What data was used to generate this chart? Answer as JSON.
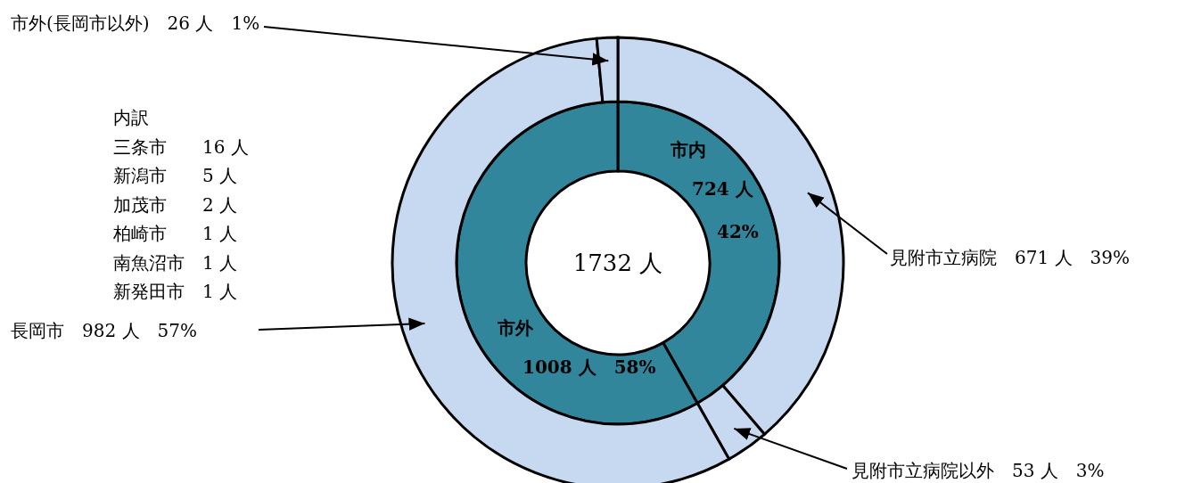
{
  "chart_data": [
    {
      "type": "donut",
      "categories": [
        "市内",
        "市外"
      ],
      "values": [
        724,
        1008
      ],
      "colors": [
        "#31869b",
        "#31869b"
      ],
      "value_labels": [
        "724 人\n42%",
        "1008 人　58%"
      ],
      "annotations": [
        "1732 人"
      ]
    },
    {
      "type": "donut",
      "categories": [
        "見附市立病院",
        "見附市立病院以外",
        "長岡市",
        "市外(長岡市以外)"
      ],
      "values": [
        671,
        53,
        982,
        26
      ],
      "colors": [
        "#c6d9f1",
        "#c6d9f1",
        "#c6d9f1",
        "#c6d9f1"
      ],
      "value_labels": [
        "671 人　39%",
        "53 人　3%",
        "982 人　57%",
        "26 人　1%"
      ],
      "annotations": [
        "内訳",
        "三条市　　16 人",
        "新潟市　　5 人",
        "加茂市　　2 人",
        "柏崎市　　1 人",
        "南魚沼市　1 人",
        "新発田市　1 人"
      ]
    }
  ]
}
